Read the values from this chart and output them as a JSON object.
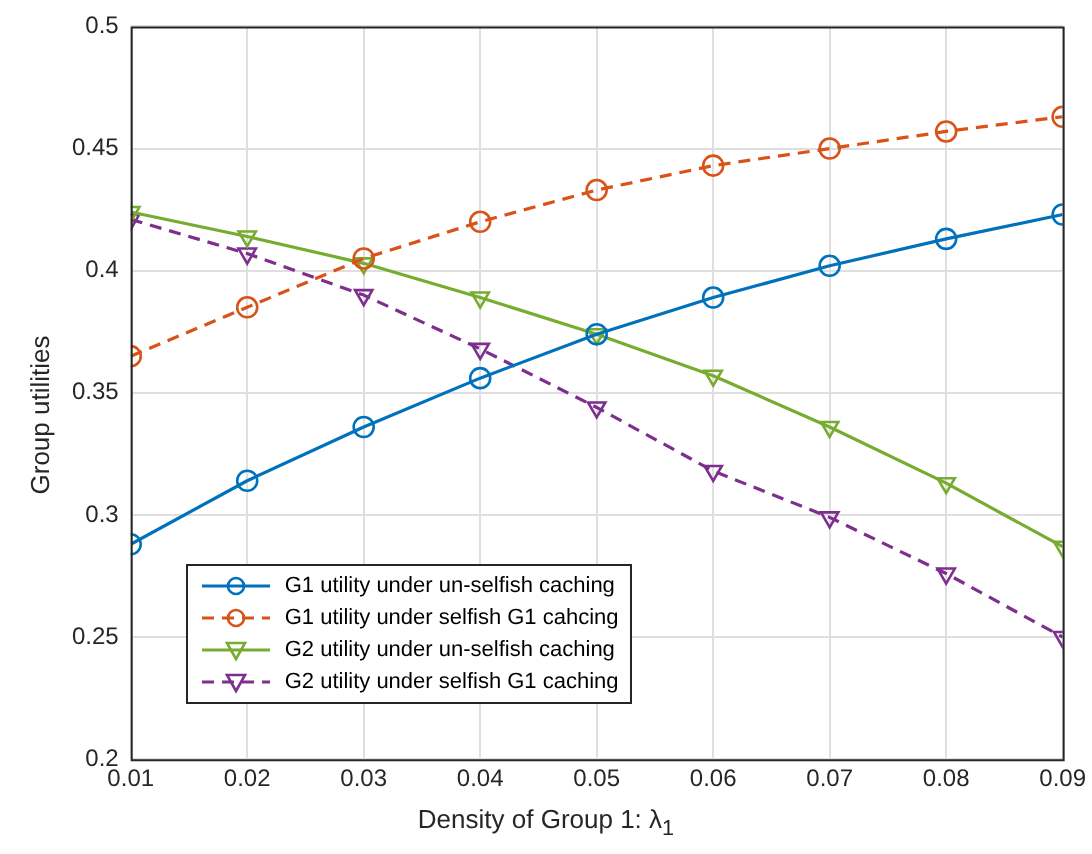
{
  "chart_data": {
    "type": "line",
    "xlabel": "Density of Group 1: λ$_{1}$",
    "ylabel": "Group utilities",
    "x": [
      0.01,
      0.02,
      0.03,
      0.04,
      0.05,
      0.06,
      0.07,
      0.08,
      0.09
    ],
    "series": [
      {
        "name": "G1 utility under un-selfish caching",
        "color": "#0072bd",
        "marker": "circle",
        "line_style": "solid",
        "values": [
          0.288,
          0.314,
          0.336,
          0.356,
          0.374,
          0.389,
          0.402,
          0.413,
          0.423
        ]
      },
      {
        "name": "G1 utility under selfish G1 cahcing",
        "color": "#d95319",
        "marker": "circle",
        "line_style": "dashed",
        "values": [
          0.365,
          0.385,
          0.405,
          0.42,
          0.433,
          0.443,
          0.45,
          0.457,
          0.463
        ]
      },
      {
        "name": "G2 utility under un-selfish caching",
        "color": "#77ac30",
        "marker": "triangle",
        "line_style": "solid",
        "values": [
          0.424,
          0.414,
          0.403,
          0.389,
          0.374,
          0.357,
          0.336,
          0.313,
          0.287
        ]
      },
      {
        "name": "G2 utility under selfish G1 caching",
        "color": "#7e2f8e",
        "marker": "triangle",
        "line_style": "dashed",
        "values": [
          0.421,
          0.407,
          0.39,
          0.368,
          0.344,
          0.318,
          0.299,
          0.276,
          0.25
        ]
      }
    ],
    "xlim": [
      0.01,
      0.09
    ],
    "xticks": [
      0.01,
      0.02,
      0.03,
      0.04,
      0.05,
      0.06,
      0.07,
      0.08,
      0.09
    ],
    "ylim": [
      0.2,
      0.5
    ],
    "yticks": [
      0.2,
      0.25,
      0.3,
      0.35,
      0.4,
      0.45,
      0.5
    ],
    "grid": true,
    "legend": "bottom left"
  }
}
